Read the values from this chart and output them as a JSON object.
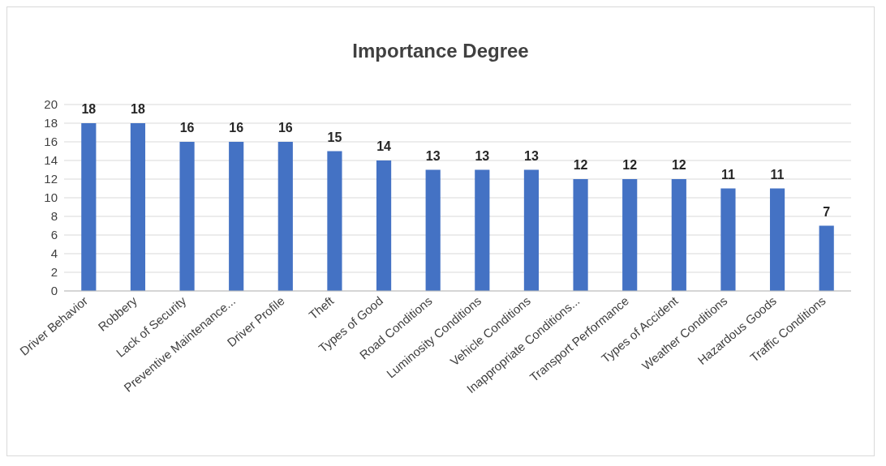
{
  "chart_data": {
    "type": "bar",
    "title": "Importance Degree",
    "categories": [
      "Driver Behavior",
      "Robbery",
      "Lack of Security",
      "Preventive Maintenance...",
      "Driver Profile",
      "Theft",
      "Types of Good",
      "Road Conditions",
      "Luminosity Conditions",
      "Vehicle Conditions",
      "Inappropriate Conditions...",
      "Transport Performance",
      "Types of Accident",
      "Weather Conditions",
      "Hazardous Goods",
      "Traffic Conditions"
    ],
    "values": [
      18,
      18,
      16,
      16,
      16,
      15,
      14,
      13,
      13,
      13,
      12,
      12,
      12,
      11,
      11,
      7
    ],
    "color": "#4472c4",
    "ylim": [
      0,
      20
    ],
    "yticks": [
      0,
      2,
      4,
      6,
      8,
      10,
      12,
      14,
      16,
      18,
      20
    ],
    "grid": "y",
    "data_labels": true
  }
}
